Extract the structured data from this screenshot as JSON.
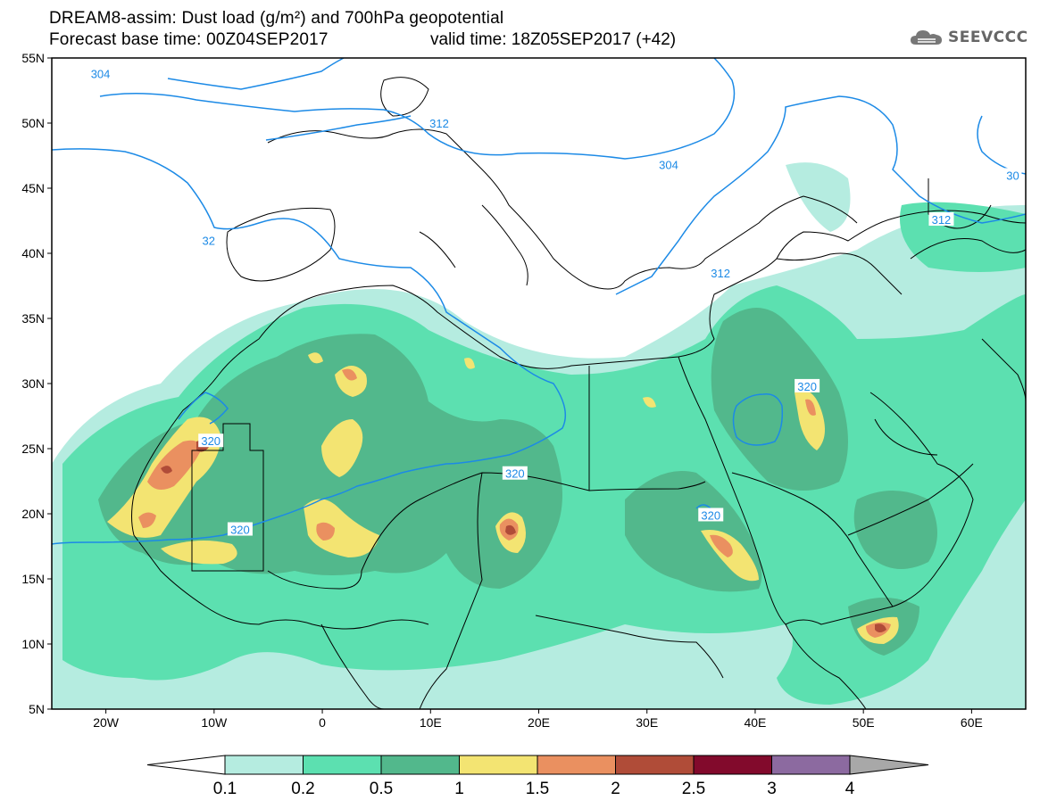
{
  "header": {
    "title_line1": "DREAM8-assim: Dust load (g/m²) and 700hPa geopotential",
    "title_line2": "Forecast base time: 00Z04SEP2017",
    "valid_time": "valid time: 18Z05SEP2017 (+42)",
    "logo_text": "SEEVCCC"
  },
  "axes": {
    "lat_labels": [
      "55N",
      "50N",
      "45N",
      "40N",
      "35N",
      "30N",
      "25N",
      "20N",
      "15N",
      "10N",
      "5N"
    ],
    "lat_values": [
      55,
      50,
      45,
      40,
      35,
      30,
      25,
      20,
      15,
      10,
      5
    ],
    "lon_labels": [
      "20W",
      "10W",
      "0",
      "10E",
      "20E",
      "30E",
      "40E",
      "50E",
      "60E"
    ],
    "lon_values": [
      -20,
      -10,
      0,
      10,
      20,
      30,
      40,
      50,
      60
    ],
    "lon_range": [
      -25,
      65
    ],
    "lat_range": [
      5,
      55
    ]
  },
  "contour_labels": [
    {
      "text": "304",
      "lon": -20.5,
      "lat": 53.8
    },
    {
      "text": "312",
      "lon": 10.8,
      "lat": 50.0
    },
    {
      "text": "304",
      "lon": 32.0,
      "lat": 46.8
    },
    {
      "text": "312",
      "lon": 57.2,
      "lat": 42.6
    },
    {
      "text": "30",
      "lon": 63.8,
      "lat": 46.0
    },
    {
      "text": "312",
      "lon": 36.8,
      "lat": 38.5
    },
    {
      "text": "32",
      "lon": -10.5,
      "lat": 41.0
    },
    {
      "text": "320",
      "lon": -10.3,
      "lat": 25.6
    },
    {
      "text": "320",
      "lon": 17.8,
      "lat": 23.1
    },
    {
      "text": "320",
      "lon": -7.6,
      "lat": 18.8
    },
    {
      "text": "320",
      "lon": 44.8,
      "lat": 29.8
    },
    {
      "text": "320",
      "lon": 35.9,
      "lat": 19.9
    }
  ],
  "colorbar": {
    "ticks": [
      "0.1",
      "0.2",
      "0.5",
      "1",
      "1.5",
      "2",
      "2.5",
      "3",
      "4"
    ],
    "colors": [
      "#b5ece0",
      "#5ce0b0",
      "#52b88c",
      "#f3e472",
      "#ea9060",
      "#b04c38",
      "#820a2c",
      "#8c6aa0"
    ],
    "under_color": "#ffffff",
    "over_color": "#a8a8a8"
  },
  "colors": {
    "dust_low": "#b5ece0",
    "dust_02": "#5ce0b0",
    "dust_05": "#52b88c",
    "dust_1": "#f3e472",
    "dust_15": "#ea9060",
    "dust_2": "#b04c38",
    "contour": "#1c8ae6",
    "coast": "#000000"
  }
}
